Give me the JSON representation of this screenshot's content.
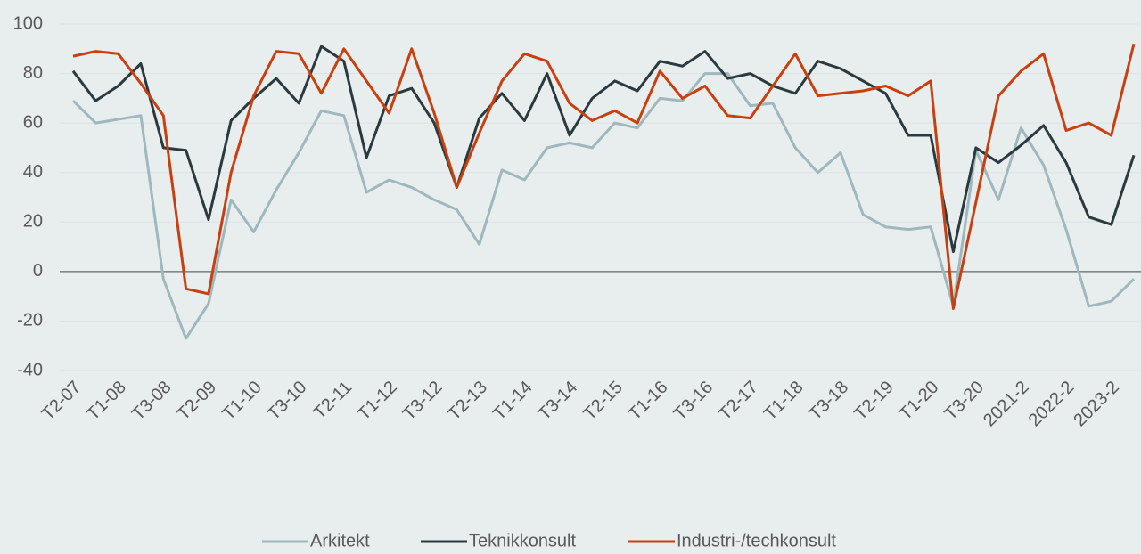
{
  "chart_data": {
    "type": "line",
    "categories": [
      "T2-07",
      null,
      "T1-08",
      null,
      "T3-08",
      null,
      "T2-09",
      null,
      "T1-10",
      null,
      "T3-10",
      null,
      "T2-11",
      null,
      "T1-12",
      null,
      "T3-12",
      null,
      "T2-13",
      null,
      "T1-14",
      null,
      "T3-14",
      null,
      "T2-15",
      null,
      "T1-16",
      null,
      "T3-16",
      null,
      "T2-17",
      null,
      "T1-18",
      null,
      "T3-18",
      null,
      "T2-19",
      null,
      "T1-20",
      null,
      "T3-20",
      null,
      "2021-2",
      null,
      "2022-2",
      null,
      "2023-2",
      null
    ],
    "series": [
      {
        "name": "Arkitekt",
        "color": "#9fb8bd",
        "values": [
          69,
          60,
          61.5,
          63,
          -3,
          -27,
          -13,
          29,
          16,
          33,
          48,
          65,
          63,
          32,
          37,
          34,
          29,
          25,
          11,
          41,
          37,
          50,
          52,
          50,
          60,
          58,
          70,
          69,
          80,
          80,
          67,
          68,
          50,
          40,
          48,
          23,
          18,
          17,
          18,
          -14,
          49,
          29,
          58,
          43,
          17,
          -14,
          -12,
          -3
        ]
      },
      {
        "name": "Teknikkonsult",
        "color": "#2b3a3f",
        "values": [
          81,
          69,
          75,
          84,
          50,
          49,
          21,
          61,
          70,
          78,
          68,
          91,
          85,
          46,
          71,
          74,
          60,
          34,
          62,
          72,
          61,
          80,
          55,
          70,
          77,
          73,
          85,
          83,
          89,
          78,
          80,
          75,
          72,
          85,
          82,
          77,
          72,
          55,
          55,
          8,
          50,
          44,
          51,
          59,
          44,
          22,
          19,
          47
        ]
      },
      {
        "name": "Industri-/techkonsult",
        "color": "#c8400f",
        "values": [
          87,
          89,
          88,
          76,
          63,
          -7,
          -9,
          40,
          71,
          89,
          88,
          72,
          90,
          77,
          64,
          90,
          64,
          34,
          56,
          77,
          88,
          85,
          68,
          61,
          65,
          60,
          81,
          70,
          75,
          63,
          62,
          75,
          88,
          71,
          72,
          73,
          75,
          71,
          77,
          -15,
          28,
          71,
          81,
          88,
          57,
          60,
          55,
          92
        ]
      }
    ],
    "ylim": [
      -40,
      100
    ],
    "yticks": [
      -40,
      -20,
      0,
      20,
      40,
      60,
      80,
      100
    ],
    "grid": true,
    "legend": "bottom"
  }
}
